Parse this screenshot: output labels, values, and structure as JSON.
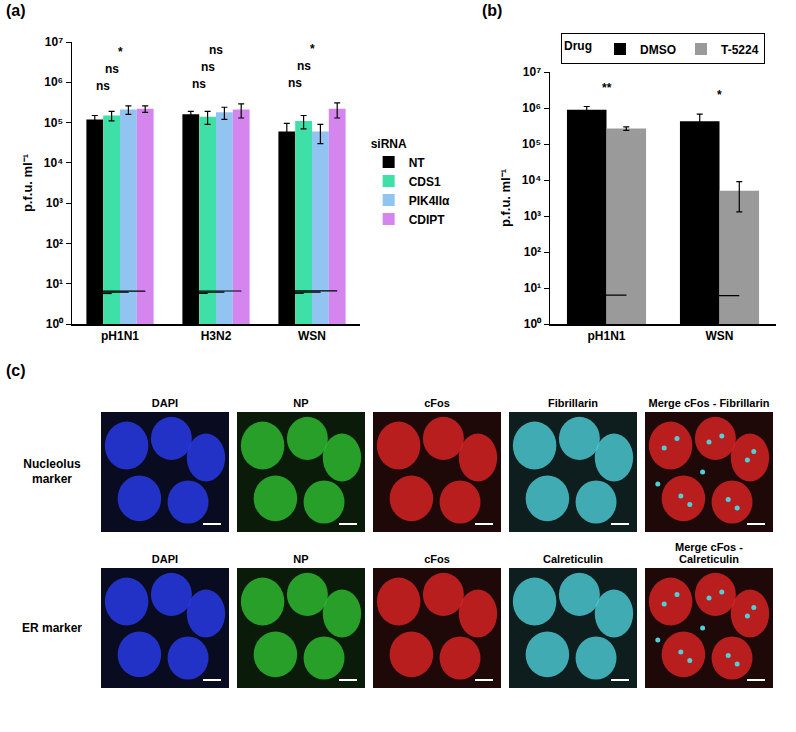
{
  "chart_data": [
    {
      "type": "bar",
      "title": "(a)",
      "categories": [
        "pH1N1",
        "H3N2",
        "WSN"
      ],
      "y_label": "p.f.u. ml⁻¹",
      "log": "y",
      "ylim": [
        1,
        10000000
      ],
      "yticks": [
        {
          "value": 1,
          "label": "10⁰"
        },
        {
          "value": 10,
          "label": "10¹"
        },
        {
          "value": 100,
          "label": "10²"
        },
        {
          "value": 1000,
          "label": "10³"
        },
        {
          "value": 10000,
          "label": "10⁴"
        },
        {
          "value": 100000,
          "label": "10⁵"
        },
        {
          "value": 1000000,
          "label": "10⁶"
        },
        {
          "value": 10000000,
          "label": "10⁷"
        }
      ],
      "legend": "right",
      "legend_title": "siRNA",
      "series": [
        {
          "name": "NT",
          "color": "#000000",
          "values": [
            120000,
            160000,
            60000
          ],
          "error_plus": [
            30000,
            30000,
            35000
          ],
          "error_minus": [
            30000,
            30000,
            35000
          ]
        },
        {
          "name": "CDS1",
          "color": "#3ee0a8",
          "values": [
            150000,
            140000,
            110000
          ],
          "error_plus": [
            40000,
            50000,
            40000
          ],
          "error_minus": [
            40000,
            50000,
            40000
          ]
        },
        {
          "name": "PIK4IIα",
          "color": "#92c4f2",
          "values": [
            210000,
            180000,
            60000
          ],
          "error_plus": [
            50000,
            60000,
            30000
          ],
          "error_minus": [
            50000,
            60000,
            30000
          ]
        },
        {
          "name": "CDIPT",
          "color": "#d586ee",
          "values": [
            220000,
            210000,
            220000
          ],
          "error_plus": [
            40000,
            80000,
            90000
          ],
          "error_minus": [
            40000,
            80000,
            90000
          ]
        }
      ],
      "significance": [
        {
          "category": "pH1N1",
          "from": "NT",
          "to": "CDIPT",
          "text": "*"
        },
        {
          "category": "pH1N1",
          "from": "NT",
          "to": "PIK4IIα",
          "text": "ns"
        },
        {
          "category": "pH1N1",
          "from": "NT",
          "to": "CDS1",
          "text": "ns"
        },
        {
          "category": "H3N2",
          "from": "NT",
          "to": "CDIPT",
          "text": "ns"
        },
        {
          "category": "H3N2",
          "from": "NT",
          "to": "PIK4IIα",
          "text": "ns"
        },
        {
          "category": "H3N2",
          "from": "NT",
          "to": "CDS1",
          "text": "ns"
        },
        {
          "category": "WSN",
          "from": "NT",
          "to": "CDIPT",
          "text": "*"
        },
        {
          "category": "WSN",
          "from": "NT",
          "to": "PIK4IIα",
          "text": "ns"
        },
        {
          "category": "WSN",
          "from": "NT",
          "to": "CDS1",
          "text": "ns"
        }
      ]
    },
    {
      "type": "bar",
      "title": "(b)",
      "categories": [
        "pH1N1",
        "WSN"
      ],
      "y_label": "p.f.u. ml⁻¹",
      "log": "y",
      "ylim": [
        1,
        10000000
      ],
      "yticks": [
        {
          "value": 1,
          "label": "10⁰"
        },
        {
          "value": 10,
          "label": "10¹"
        },
        {
          "value": 100,
          "label": "10²"
        },
        {
          "value": 1000,
          "label": "10³"
        },
        {
          "value": 10000,
          "label": "10⁴"
        },
        {
          "value": 100000,
          "label": "10⁵"
        },
        {
          "value": 1000000,
          "label": "10⁶"
        },
        {
          "value": 10000000,
          "label": "10⁷"
        }
      ],
      "legend": "top",
      "legend_title": "Drug",
      "series": [
        {
          "name": "DMSO",
          "color": "#000000",
          "values": [
            900000,
            430000
          ],
          "error_plus": [
            200000,
            250000
          ],
          "error_minus": [
            200000,
            250000
          ]
        },
        {
          "name": "T-5224",
          "color": "#9a9a9a",
          "values": [
            270000,
            5000
          ],
          "error_plus": [
            30000,
            4000
          ],
          "error_minus": [
            30000,
            3700
          ]
        }
      ],
      "significance": [
        {
          "category": "pH1N1",
          "from": "DMSO",
          "to": "T-5224",
          "text": "**"
        },
        {
          "category": "WSN",
          "from": "DMSO",
          "to": "T-5224",
          "text": "*"
        }
      ]
    }
  ],
  "panel_c": {
    "title": "(c)",
    "rows": [
      {
        "label": "Nucleolus marker",
        "images": [
          {
            "label": "DAPI",
            "colors": [
              "#2a3cf0"
            ]
          },
          {
            "label": "NP",
            "colors": [
              "#2fc02f"
            ]
          },
          {
            "label": "cFos",
            "colors": [
              "#e02424"
            ]
          },
          {
            "label": "Fibrillarin",
            "colors": [
              "#4fd0d8"
            ]
          },
          {
            "label": "Merge cFos - Fibrillarin",
            "colors": [
              "#e02424",
              "#4fd0d8"
            ]
          }
        ]
      },
      {
        "label": "ER marker",
        "images": [
          {
            "label": "DAPI",
            "colors": [
              "#2a3cf0"
            ]
          },
          {
            "label": "NP",
            "colors": [
              "#2fc02f"
            ]
          },
          {
            "label": "cFos",
            "colors": [
              "#e02424"
            ]
          },
          {
            "label": "Calreticulin",
            "colors": [
              "#4fd0d8"
            ]
          },
          {
            "label": "Merge cFos - Calreticulin",
            "colors": [
              "#e02424",
              "#4fd0d8"
            ]
          }
        ]
      }
    ]
  }
}
